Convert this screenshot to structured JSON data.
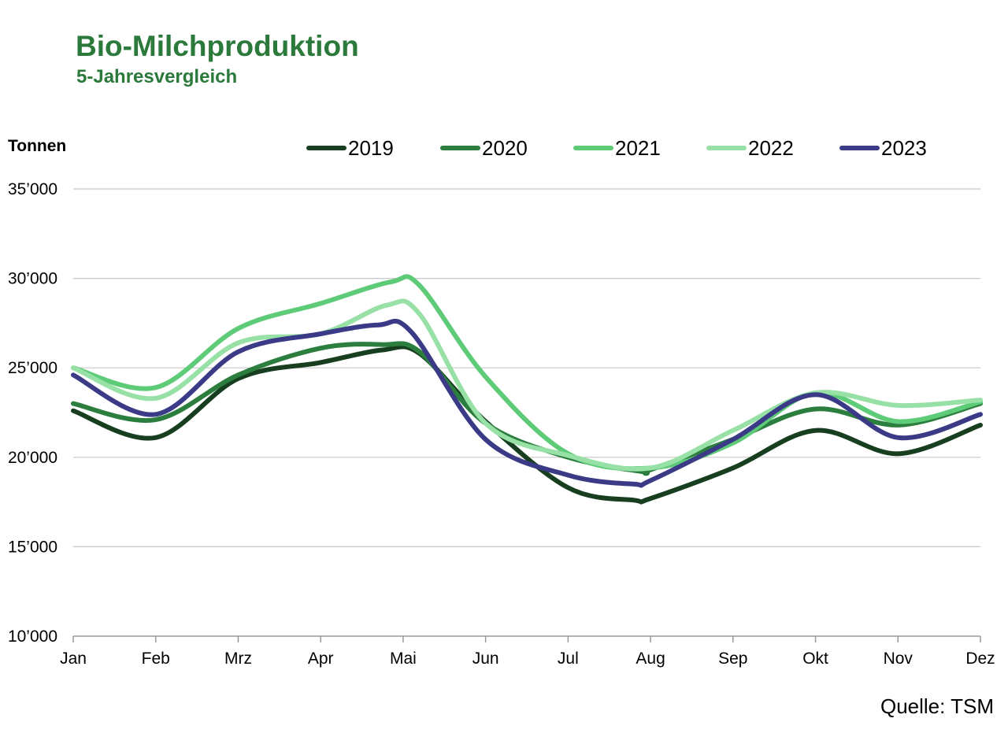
{
  "chart_data": {
    "type": "line",
    "title": "Bio-Milchproduktion",
    "subtitle": "5-Jahresvergleich",
    "ylabel": "Tonnen",
    "source": "Quelle: TSM",
    "categories": [
      "Jan",
      "Feb",
      "Mrz",
      "Apr",
      "Mai",
      "Jun",
      "Jul",
      "Aug",
      "Sep",
      "Okt",
      "Nov",
      "Dez"
    ],
    "yticks": [
      10000,
      15000,
      20000,
      25000,
      30000,
      35000
    ],
    "ytick_labels": [
      "10’000",
      "15’000",
      "20’000",
      "25’000",
      "30’000",
      "35’000"
    ],
    "ylim": [
      10000,
      35000
    ],
    "legend_position": "top",
    "series": [
      {
        "name": "2019",
        "color": "#173f1f",
        "points": [
          [
            0,
            22600
          ],
          [
            1,
            21100
          ],
          [
            2,
            24400
          ],
          [
            3,
            25300
          ],
          [
            3.75,
            26000
          ],
          [
            4.2,
            25800
          ],
          [
            5,
            22000
          ],
          [
            6,
            18300
          ],
          [
            6.8,
            17600
          ],
          [
            7,
            17700
          ],
          [
            8,
            19400
          ],
          [
            9,
            21500
          ],
          [
            10,
            20200
          ],
          [
            11,
            21800
          ]
        ]
      },
      {
        "name": "2020",
        "color": "#2b7e3e",
        "points": [
          [
            0,
            23000
          ],
          [
            1,
            22100
          ],
          [
            2,
            24600
          ],
          [
            3,
            26100
          ],
          [
            3.75,
            26300
          ],
          [
            4.2,
            25900
          ],
          [
            5,
            21900
          ],
          [
            6,
            20000
          ],
          [
            6.9,
            19200
          ],
          [
            7,
            19300
          ],
          [
            8,
            21000
          ],
          [
            9,
            22700
          ],
          [
            10,
            21800
          ],
          [
            11,
            23000
          ]
        ]
      },
      {
        "name": "2021",
        "color": "#5ecb78",
        "points": [
          [
            0,
            25000
          ],
          [
            1,
            23900
          ],
          [
            2,
            27200
          ],
          [
            3,
            28600
          ],
          [
            3.85,
            29800
          ],
          [
            4.2,
            29600
          ],
          [
            5,
            24500
          ],
          [
            6,
            20200
          ],
          [
            7,
            19400
          ],
          [
            8,
            20800
          ],
          [
            9,
            23600
          ],
          [
            10,
            22000
          ],
          [
            11,
            23100
          ]
        ]
      },
      {
        "name": "2022",
        "color": "#97e0a6",
        "points": [
          [
            0,
            25000
          ],
          [
            1,
            23300
          ],
          [
            2,
            26400
          ],
          [
            3,
            26900
          ],
          [
            3.8,
            28500
          ],
          [
            4.2,
            28000
          ],
          [
            5,
            21900
          ],
          [
            6,
            20100
          ],
          [
            7,
            19400
          ],
          [
            8,
            21500
          ],
          [
            9,
            23600
          ],
          [
            10,
            22900
          ],
          [
            11,
            23200
          ]
        ]
      },
      {
        "name": "2023",
        "color": "#3a3a86",
        "points": [
          [
            0,
            24600
          ],
          [
            1,
            22400
          ],
          [
            2,
            25900
          ],
          [
            3,
            26900
          ],
          [
            3.7,
            27400
          ],
          [
            4.1,
            27000
          ],
          [
            5,
            21000
          ],
          [
            6,
            19000
          ],
          [
            6.8,
            18500
          ],
          [
            7,
            18700
          ],
          [
            8,
            21000
          ],
          [
            9,
            23500
          ],
          [
            10,
            21100
          ],
          [
            11,
            22400
          ]
        ]
      }
    ]
  }
}
